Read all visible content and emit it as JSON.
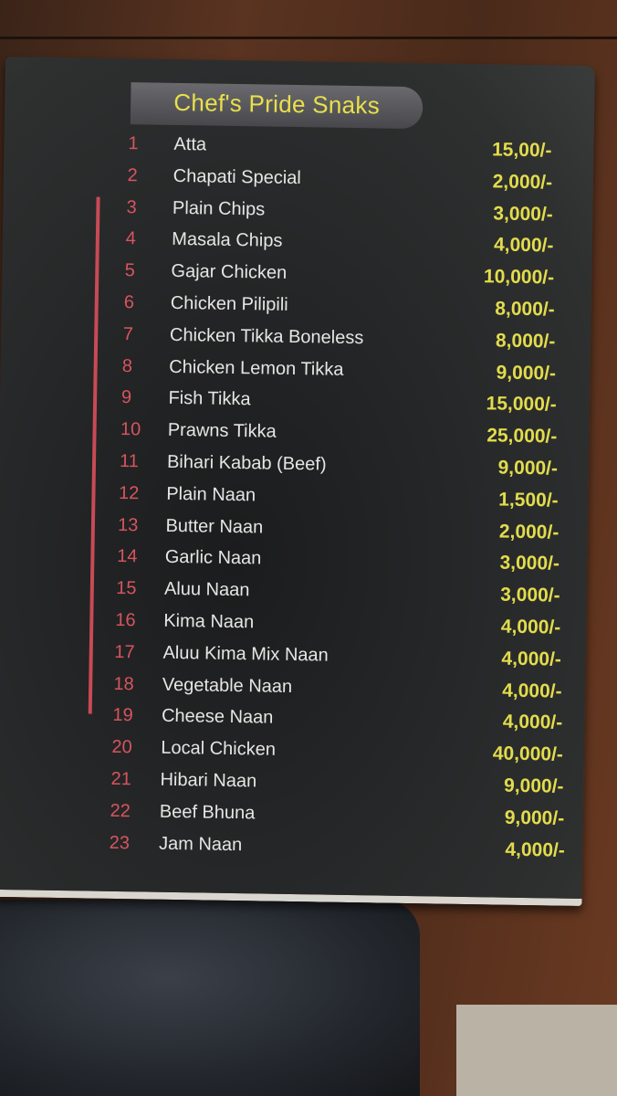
{
  "menu": {
    "title": "Chef's Pride Snaks",
    "colors": {
      "title": "#e9e04a",
      "number": "#d7555f",
      "name": "#e6e6e4",
      "price": "#e2dc4c",
      "card": "#262728"
    },
    "items": [
      {
        "num": "1",
        "name": "Atta",
        "price": "15,00/-"
      },
      {
        "num": "2",
        "name": "Chapati Special",
        "price": "2,000/-"
      },
      {
        "num": "3",
        "name": "Plain Chips",
        "price": "3,000/-"
      },
      {
        "num": "4",
        "name": "Masala Chips",
        "price": "4,000/-"
      },
      {
        "num": "5",
        "name": "Gajar Chicken",
        "price": "10,000/-"
      },
      {
        "num": "6",
        "name": "Chicken Pilipili",
        "price": "8,000/-"
      },
      {
        "num": "7",
        "name": "Chicken Tikka Boneless",
        "price": "8,000/-"
      },
      {
        "num": "8",
        "name": "Chicken Lemon Tikka",
        "price": "9,000/-"
      },
      {
        "num": "9",
        "name": "Fish Tikka",
        "price": "15,000/-"
      },
      {
        "num": "10",
        "name": "Prawns Tikka",
        "price": "25,000/-"
      },
      {
        "num": "11",
        "name": "Bihari Kabab (Beef)",
        "price": "9,000/-"
      },
      {
        "num": "12",
        "name": "Plain Naan",
        "price": "1,500/-"
      },
      {
        "num": "13",
        "name": "Butter Naan",
        "price": "2,000/-"
      },
      {
        "num": "14",
        "name": "Garlic Naan",
        "price": "3,000/-"
      },
      {
        "num": "15",
        "name": "Aluu Naan",
        "price": "3,000/-"
      },
      {
        "num": "16",
        "name": "Kima Naan",
        "price": "4,000/-"
      },
      {
        "num": "17",
        "name": "Aluu Kima Mix Naan",
        "price": "4,000/-"
      },
      {
        "num": "18",
        "name": "Vegetable Naan",
        "price": "4,000/-"
      },
      {
        "num": "19",
        "name": "Cheese Naan",
        "price": "4,000/-"
      },
      {
        "num": "20",
        "name": "Local Chicken",
        "price": "40,000/-"
      },
      {
        "num": "21",
        "name": "Hibari Naan",
        "price": "9,000/-"
      },
      {
        "num": "22",
        "name": "Beef Bhuna",
        "price": "9,000/-"
      },
      {
        "num": "23",
        "name": "Jam Naan",
        "price": "4,000/-"
      }
    ]
  }
}
